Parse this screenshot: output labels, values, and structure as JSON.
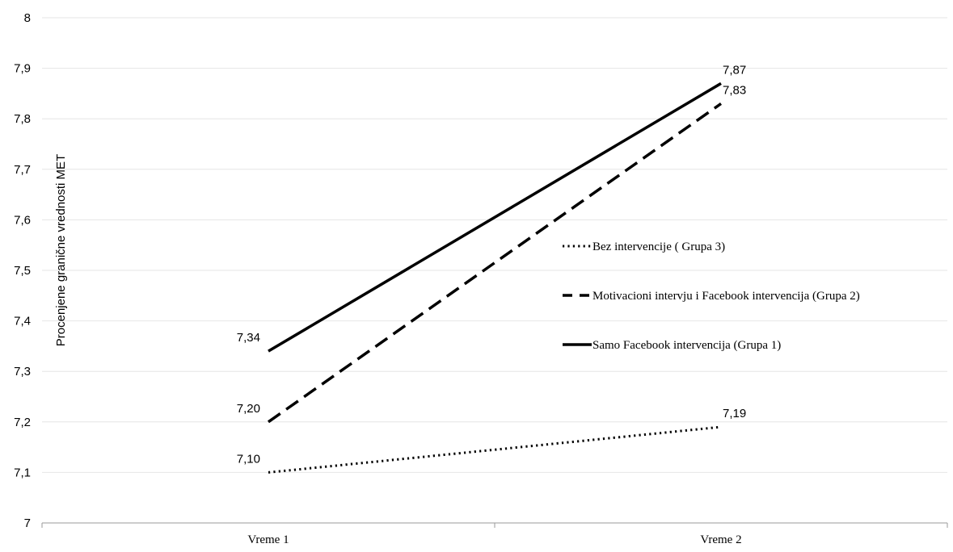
{
  "chart_data": {
    "type": "line",
    "title": "",
    "xlabel": "",
    "ylabel": "Procenjene granične vrednosti MET",
    "categories": [
      "Vreme 1",
      "Vreme 2"
    ],
    "ylim": [
      7,
      8
    ],
    "yticks": [
      7,
      7.1,
      7.2,
      7.3,
      7.4,
      7.5,
      7.6,
      7.7,
      7.8,
      7.9,
      8
    ],
    "ytick_labels": [
      "7",
      "7,1",
      "7,2",
      "7,3",
      "7,4",
      "7,5",
      "7,6",
      "7,7",
      "7,8",
      "7,9",
      "8"
    ],
    "grid": true,
    "legend": "center-right",
    "series": [
      {
        "name": "Bez intervencije ( Grupa 3)",
        "style": "dotted",
        "color": "#000000",
        "values": [
          7.1,
          7.19
        ],
        "labels": [
          "7,10",
          "7,19"
        ]
      },
      {
        "name": "Motivacioni intervju i Facebook intervencija (Grupa 2)",
        "style": "dashed",
        "color": "#000000",
        "values": [
          7.2,
          7.83
        ],
        "labels": [
          "7,20",
          "7,83"
        ]
      },
      {
        "name": "Samo Facebook intervencija (Grupa 1)",
        "style": "solid",
        "color": "#000000",
        "values": [
          7.34,
          7.87
        ],
        "labels": [
          "7,34",
          "7,87"
        ]
      }
    ]
  }
}
